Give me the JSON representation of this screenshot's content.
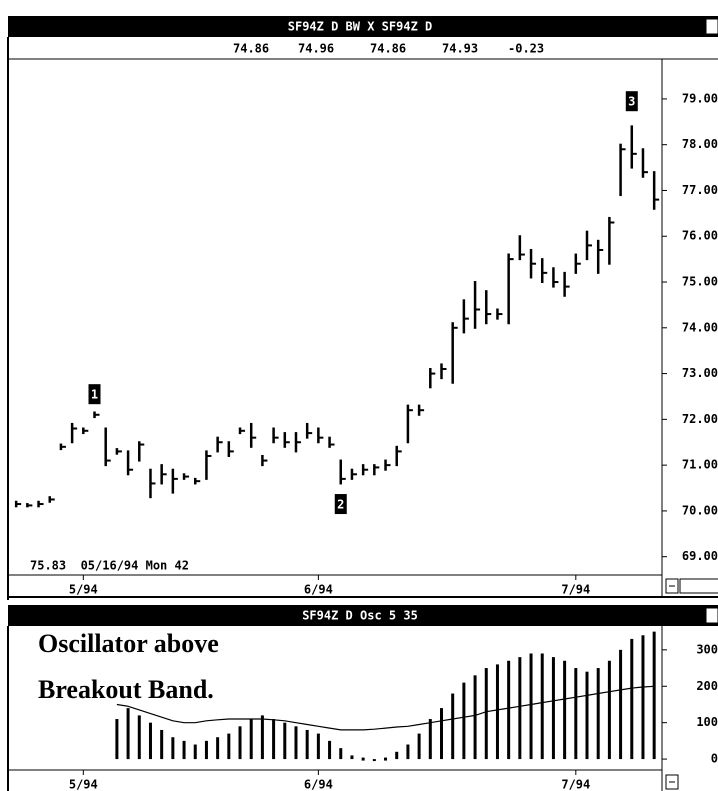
{
  "chart_data": [
    {
      "type": "ohlc",
      "title": "SF94Z D BW X SF94Z D",
      "quote": [
        74.86,
        74.96,
        74.86,
        74.93,
        -0.23
      ],
      "status": "75.83  05/16/94 Mon 42",
      "xlim": [
        -0.55,
        57.7
      ],
      "xticks": [
        {
          "value": 6,
          "label": "5/94"
        },
        {
          "value": 27,
          "label": "6/94"
        },
        {
          "value": 50,
          "label": "7/94"
        }
      ],
      "ylim": [
        68.6,
        79.85
      ],
      "yticks": [
        {
          "value": 69,
          "label": "69.00"
        },
        {
          "value": 70,
          "label": "70.00"
        },
        {
          "value": 71,
          "label": "71.00"
        },
        {
          "value": 72,
          "label": "72.00"
        },
        {
          "value": 73,
          "label": "73.00"
        },
        {
          "value": 74,
          "label": "74.00"
        },
        {
          "value": 75,
          "label": "75.00"
        },
        {
          "value": 76,
          "label": "76.00"
        },
        {
          "value": 77,
          "label": "77.00"
        },
        {
          "value": 78,
          "label": "78.00"
        },
        {
          "value": 79,
          "label": "79.00"
        }
      ],
      "color": "#000000",
      "high": [
        70.2,
        70.15,
        70.2,
        70.3,
        71.45,
        71.9,
        71.8,
        72.15,
        71.8,
        71.35,
        71.3,
        71.5,
        70.9,
        71.0,
        70.9,
        70.8,
        70.7,
        71.3,
        71.6,
        71.5,
        71.8,
        71.9,
        71.2,
        71.8,
        71.7,
        71.7,
        71.9,
        71.8,
        71.6,
        71.1,
        70.9,
        71.0,
        71.0,
        71.1,
        71.4,
        72.3,
        72.3,
        73.1,
        73.2,
        74.1,
        74.6,
        75.0,
        74.8,
        74.4,
        75.6,
        76.0,
        75.7,
        75.5,
        75.3,
        75.2,
        75.6,
        76.1,
        75.9,
        76.4,
        78.0,
        78.4,
        77.9,
        77.4
      ],
      "low": [
        70.1,
        70.1,
        70.1,
        70.2,
        71.35,
        71.5,
        71.7,
        72.05,
        71.0,
        71.25,
        70.8,
        71.1,
        70.3,
        70.6,
        70.4,
        70.7,
        70.6,
        70.7,
        71.3,
        71.2,
        71.7,
        71.4,
        71.0,
        71.5,
        71.4,
        71.3,
        71.6,
        71.5,
        71.4,
        70.6,
        70.7,
        70.8,
        70.8,
        70.9,
        71.0,
        71.5,
        72.1,
        72.7,
        72.9,
        72.8,
        73.9,
        74.0,
        74.1,
        74.2,
        74.1,
        75.5,
        75.1,
        75.0,
        74.9,
        74.7,
        75.2,
        75.5,
        75.2,
        75.4,
        76.9,
        77.5,
        77.3,
        76.6
      ],
      "close": [
        70.15,
        70.12,
        70.15,
        70.25,
        71.4,
        71.8,
        71.75,
        72.1,
        71.1,
        71.3,
        70.9,
        71.45,
        70.6,
        70.8,
        70.7,
        70.75,
        70.65,
        71.2,
        71.5,
        71.3,
        71.75,
        71.6,
        71.1,
        71.6,
        71.5,
        71.5,
        71.7,
        71.6,
        71.45,
        70.7,
        70.8,
        70.9,
        70.95,
        71.0,
        71.3,
        72.2,
        72.2,
        73.0,
        73.1,
        74.0,
        74.2,
        74.4,
        74.3,
        74.3,
        75.5,
        75.6,
        75.4,
        75.2,
        75.0,
        74.9,
        75.4,
        75.8,
        75.7,
        76.3,
        77.9,
        77.8,
        77.4,
        76.8
      ],
      "markers": [
        {
          "text": 1,
          "x": 7,
          "y": 72.55
        },
        {
          "text": 2,
          "x": 29,
          "y": 70.15
        },
        {
          "text": 3,
          "x": 55,
          "y": 78.95
        }
      ]
    },
    {
      "type": "bar",
      "title": "SF94Z D Osc 5 35",
      "annotations": [
        "Oscillator above",
        "Breakout Band."
      ],
      "xlim": [
        -0.55,
        57.7
      ],
      "xticks": [
        {
          "value": 6,
          "label": "5/94"
        },
        {
          "value": 27,
          "label": "6/94"
        },
        {
          "value": 50,
          "label": "7/94"
        }
      ],
      "ylim": [
        -30,
        360
      ],
      "yticks": [
        0,
        100,
        200,
        300
      ],
      "series": [
        {
          "type": "bar",
          "color": "#000000",
          "values": [
            null,
            null,
            null,
            null,
            null,
            null,
            null,
            null,
            null,
            110,
            140,
            120,
            100,
            80,
            60,
            50,
            40,
            50,
            60,
            70,
            90,
            110,
            120,
            110,
            100,
            90,
            80,
            70,
            50,
            30,
            10,
            0,
            -5,
            0,
            20,
            40,
            70,
            110,
            140,
            180,
            210,
            230,
            250,
            260,
            270,
            280,
            290,
            290,
            280,
            270,
            250,
            240,
            250,
            270,
            300,
            330,
            340,
            350
          ]
        },
        {
          "type": "line",
          "color": "#000000",
          "values": [
            null,
            null,
            null,
            null,
            null,
            null,
            null,
            null,
            null,
            150,
            145,
            135,
            125,
            115,
            105,
            100,
            100,
            105,
            108,
            110,
            110,
            110,
            110,
            108,
            105,
            100,
            95,
            90,
            85,
            80,
            80,
            80,
            82,
            85,
            88,
            90,
            95,
            100,
            105,
            110,
            115,
            120,
            130,
            135,
            140,
            145,
            150,
            155,
            160,
            165,
            170,
            175,
            180,
            185,
            190,
            195,
            198,
            200
          ]
        }
      ]
    }
  ]
}
